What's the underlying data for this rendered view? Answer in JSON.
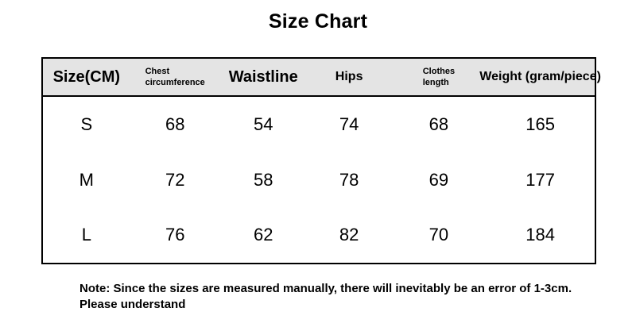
{
  "chart_data": {
    "type": "table",
    "title": "Size Chart",
    "unit": "CM",
    "columns": [
      "Size(CM)",
      "Chest\ncircumference",
      "Waistline",
      "Hips",
      "Clothes\nlength",
      "Weight (gram/piece)"
    ],
    "rows": [
      [
        "S",
        "68",
        "54",
        "74",
        "68",
        "165"
      ],
      [
        "M",
        "72",
        "58",
        "78",
        "69",
        "177"
      ],
      [
        "L",
        "76",
        "62",
        "82",
        "70",
        "184"
      ]
    ]
  },
  "note": {
    "line1": "Note: Since the sizes are measured manually, there will inevitably be an error of 1-3cm.",
    "line2": "Please understand"
  },
  "colors": {
    "page_bg": "#ffffff",
    "header_bg": "#e4e4e4",
    "border": "#000000",
    "text": "#000000"
  }
}
